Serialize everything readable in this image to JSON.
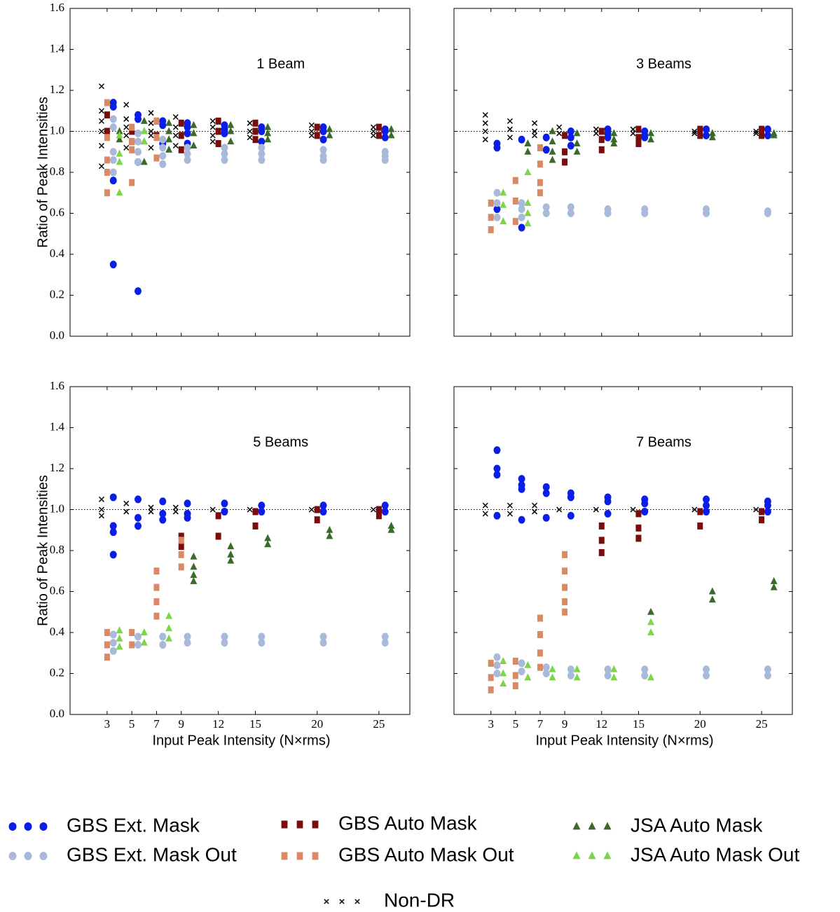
{
  "series": [
    {
      "name": "Non-DR",
      "color": "#000000",
      "marker": "x",
      "x": [
        2.55,
        4.55,
        6.55,
        8.55,
        11.55,
        14.55,
        19.55,
        24.55
      ]
    },
    {
      "name": "GBS Ext. Mask",
      "color": "#0a1ee8",
      "marker": "circle",
      "x": [
        3.5,
        5.5,
        7.5,
        9.5,
        12.5,
        15.5,
        20.5,
        25.5
      ]
    },
    {
      "name": "GBS Ext. Mask Out",
      "color": "#a9b9d9",
      "marker": "circle",
      "x": [
        3.5,
        5.5,
        7.5,
        9.5,
        12.5,
        15.5,
        20.5,
        25.5
      ]
    },
    {
      "name": "GBS Auto Mask",
      "color": "#7a0c0c",
      "marker": "square",
      "x": [
        3,
        5,
        7,
        9,
        12,
        15,
        20,
        25
      ]
    },
    {
      "name": "GBS Auto Mask Out",
      "color": "#d98a64",
      "marker": "square",
      "x": [
        3,
        5,
        7,
        9,
        12,
        15,
        20,
        25
      ]
    },
    {
      "name": "JSA Auto Mask",
      "color": "#3a6b2a",
      "marker": "triangle",
      "x": [
        4,
        6,
        8,
        10,
        13,
        16,
        21,
        26
      ]
    },
    {
      "name": "JSA Auto Mask Out",
      "color": "#7ed44a",
      "marker": "triangle",
      "x": [
        4,
        6,
        8,
        10,
        13,
        16,
        21,
        26
      ]
    }
  ],
  "chart_data": [
    {
      "type": "scatter",
      "title": "1 Beam",
      "ylabel": "Ratio of Peak Intensities",
      "xlim": [
        0,
        27.5
      ],
      "ylim": [
        0,
        1.6
      ],
      "hline": 1,
      "xticks": [
        3,
        5,
        7,
        9,
        12,
        15,
        20,
        25
      ],
      "yticks": [
        {
          "value": 0,
          "label": "0.0"
        },
        {
          "value": 0.2,
          "label": "0.2"
        },
        {
          "value": 0.4,
          "label": "0.4"
        },
        {
          "value": 0.6,
          "label": "0.6"
        },
        {
          "value": 0.8,
          "label": "0.8"
        },
        {
          "value": 1,
          "label": "1.0"
        },
        {
          "value": 1.2,
          "label": "1.2"
        },
        {
          "value": 1.4,
          "label": "1.4"
        },
        {
          "value": 1.6,
          "label": "1.6"
        }
      ],
      "values": [
        [
          [
            1.22,
            1.1,
            1.05,
            1.0,
            0.93,
            0.83
          ],
          [
            1.13,
            1.06,
            1.02,
            0.98,
            0.92
          ],
          [
            1.09,
            1.04,
            1.0,
            0.98,
            0.92
          ],
          [
            1.07,
            1.02,
            0.98,
            0.93
          ],
          [
            1.05,
            1.02,
            0.98,
            0.95
          ],
          [
            1.04,
            1.0,
            0.97
          ],
          [
            1.03,
            1.0,
            0.98
          ],
          [
            1.02,
            1.0,
            0.98
          ]
        ],
        [
          [
            1.14,
            1.12,
            0.76,
            0.35
          ],
          [
            1.08,
            1.06,
            0.85,
            0.22
          ],
          [
            1.05,
            1.03,
            0.94
          ],
          [
            1.04,
            1.02,
            0.99,
            0.94
          ],
          [
            1.03,
            1.01,
            0.99
          ],
          [
            1.02,
            1.0,
            0.95
          ],
          [
            1.02,
            1.0,
            0.96
          ],
          [
            1.01,
            1.0,
            0.97
          ]
        ],
        [
          [
            1.06,
            1.02,
            0.9,
            0.86,
            0.8
          ],
          [
            0.99,
            0.95,
            0.9,
            0.85
          ],
          [
            0.96,
            0.92,
            0.88,
            0.84
          ],
          [
            0.92,
            0.89,
            0.86
          ],
          [
            0.92,
            0.89,
            0.86
          ],
          [
            0.92,
            0.89,
            0.86
          ],
          [
            0.91,
            0.88,
            0.86
          ],
          [
            0.9,
            0.88,
            0.86
          ]
        ],
        [
          [
            1.08,
            1.0
          ],
          [
            1.0,
            0.95
          ],
          [
            1.05,
            0.98
          ],
          [
            1.04,
            0.98,
            0.91
          ],
          [
            1.05,
            1.0,
            0.94
          ],
          [
            1.04,
            1.0,
            0.96
          ],
          [
            1.02,
            0.98
          ],
          [
            1.02,
            0.98
          ]
        ],
        [
          [
            1.14,
            0.97,
            0.86,
            0.8,
            0.7
          ],
          [
            1.02,
            0.95,
            0.91,
            0.75
          ],
          [
            1.05,
            0.97,
            0.87
          ],
          [],
          [],
          [],
          [],
          []
        ],
        [
          [
            1.0,
            0.96
          ],
          [
            1.05,
            1.0,
            0.95,
            0.85
          ],
          [
            1.04,
            1.0,
            0.96,
            0.91
          ],
          [
            1.03,
            0.99,
            0.93
          ],
          [
            1.03,
            1.0,
            0.95
          ],
          [
            1.02,
            0.99,
            0.96
          ],
          [
            1.01,
            0.98
          ],
          [
            1.01,
            0.98
          ]
        ],
        [
          [
            0.98,
            0.89,
            0.85,
            0.7
          ],
          [
            1.0,
            0.95
          ],
          [],
          [],
          [],
          [],
          [],
          []
        ]
      ]
    },
    {
      "type": "scatter",
      "title": "3 Beams",
      "xlim": [
        0,
        27.5
      ],
      "ylim": [
        0,
        1.6
      ],
      "hline": 1,
      "xticks": [
        3,
        5,
        7,
        9,
        12,
        15,
        20,
        25
      ],
      "yticks": [
        0,
        0.2,
        0.4,
        0.6,
        0.8,
        1,
        1.2,
        1.4,
        1.6
      ],
      "values": [
        [
          [
            1.08,
            1.04,
            1.0,
            0.96
          ],
          [
            1.05,
            1.01,
            0.97
          ],
          [
            1.04,
            1.0,
            0.98
          ],
          [
            1.02,
            0.99
          ],
          [
            1.01,
            0.99
          ],
          [
            1.01,
            0.99
          ],
          [
            1.0,
            0.99
          ],
          [
            1.0,
            0.99
          ]
        ],
        [
          [
            0.94,
            0.92,
            0.62
          ],
          [
            0.96,
            0.53
          ],
          [
            0.97,
            0.91
          ],
          [
            1.0,
            0.97,
            0.93
          ],
          [
            1.01,
            0.99,
            0.97
          ],
          [
            1.0,
            0.98,
            0.97
          ],
          [
            1.01,
            0.98
          ],
          [
            1.01,
            0.98
          ]
        ],
        [
          [
            0.7,
            0.65,
            0.58
          ],
          [
            0.65,
            0.62,
            0.58
          ],
          [
            0.63,
            0.6
          ],
          [
            0.63,
            0.6
          ],
          [
            0.62,
            0.6
          ],
          [
            0.62,
            0.6
          ],
          [
            0.62,
            0.6
          ],
          [
            0.61,
            0.6
          ]
        ],
        [
          [],
          [],
          [],
          [
            0.98,
            0.9,
            0.85
          ],
          [
            1.0,
            0.96,
            0.91
          ],
          [
            1.01,
            0.97,
            0.94
          ],
          [
            1.01,
            0.98
          ],
          [
            1.01,
            0.98
          ]
        ],
        [
          [
            0.65,
            0.58,
            0.52
          ],
          [
            0.76,
            0.66,
            0.56
          ],
          [
            0.92,
            0.84,
            0.75,
            0.7
          ],
          [],
          [],
          [],
          [],
          []
        ],
        [
          [],
          [
            0.94,
            0.9
          ],
          [
            1.0,
            0.95,
            0.9,
            0.86
          ],
          [
            0.99,
            0.94,
            0.9
          ],
          [
            0.99,
            0.96,
            0.94
          ],
          [
            0.99,
            0.96
          ],
          [
            0.99,
            0.97
          ],
          [
            0.99,
            0.98
          ]
        ],
        [
          [
            0.7,
            0.64,
            0.56
          ],
          [
            0.8,
            0.65,
            0.6,
            0.55
          ],
          [],
          [],
          [],
          [],
          [],
          []
        ]
      ]
    },
    {
      "type": "scatter",
      "title": "5 Beams",
      "ylabel": "Ratio of Peak Intensities",
      "xlabel": "Input Peak Intensity (N×rms)",
      "xlim": [
        0,
        27.5
      ],
      "ylim": [
        0,
        1.6
      ],
      "hline": 1,
      "xticks": [
        3,
        5,
        7,
        9,
        12,
        15,
        20,
        25
      ],
      "yticks": [
        {
          "value": 0,
          "label": "0.0"
        },
        {
          "value": 0.2,
          "label": "0.2"
        },
        {
          "value": 0.4,
          "label": "0.4"
        },
        {
          "value": 0.6,
          "label": "0.6"
        },
        {
          "value": 0.8,
          "label": "0.8"
        },
        {
          "value": 1,
          "label": "1.0"
        },
        {
          "value": 1.2,
          "label": "1.2"
        },
        {
          "value": 1.4,
          "label": "1.4"
        },
        {
          "value": 1.6,
          "label": "1.6"
        }
      ],
      "values": [
        [
          [
            1.05,
            1.0,
            0.97
          ],
          [
            1.03,
            0.99
          ],
          [
            1.01,
            0.99
          ],
          [
            1.01,
            0.99
          ],
          [
            1.0
          ],
          [
            1.0
          ],
          [
            1.0
          ],
          [
            1.0
          ]
        ],
        [
          [
            1.06,
            0.92,
            0.89,
            0.78
          ],
          [
            1.05,
            0.96,
            0.92
          ],
          [
            1.04,
            0.98,
            0.95
          ],
          [
            1.03,
            0.98,
            0.96
          ],
          [
            1.03,
            0.99
          ],
          [
            1.02,
            0.99
          ],
          [
            1.02,
            0.99
          ],
          [
            1.02,
            0.99
          ]
        ],
        [
          [
            0.39,
            0.35,
            0.31
          ],
          [
            0.38,
            0.34
          ],
          [
            0.38,
            0.34
          ],
          [
            0.38,
            0.35
          ],
          [
            0.38,
            0.35
          ],
          [
            0.38,
            0.35
          ],
          [
            0.38,
            0.35
          ],
          [
            0.38,
            0.35
          ]
        ],
        [
          [],
          [],
          [],
          [
            0.87,
            0.82
          ],
          [
            0.97,
            0.87
          ],
          [
            0.99,
            0.92
          ],
          [
            1.0,
            0.95
          ],
          [
            1.0,
            0.97
          ]
        ],
        [
          [
            0.4,
            0.34,
            0.28
          ],
          [
            0.4,
            0.34
          ],
          [
            0.7,
            0.62,
            0.55,
            0.48
          ],
          [
            0.85,
            0.78,
            0.72
          ],
          [],
          [],
          [],
          []
        ],
        [
          [],
          [],
          [],
          [
            0.77,
            0.72,
            0.68,
            0.65
          ],
          [
            0.82,
            0.78,
            0.75
          ],
          [
            0.86,
            0.83
          ],
          [
            0.9,
            0.87
          ],
          [
            0.92,
            0.9
          ]
        ],
        [
          [
            0.41,
            0.37,
            0.33
          ],
          [
            0.4,
            0.35
          ],
          [
            0.48,
            0.42,
            0.37
          ],
          [],
          [],
          [],
          [],
          []
        ]
      ]
    },
    {
      "type": "scatter",
      "title": "7 Beams",
      "xlabel": "Input Peak Intensity (N×rms)",
      "xlim": [
        0,
        27.5
      ],
      "ylim": [
        0,
        1.6
      ],
      "hline": 1,
      "xticks": [
        3,
        5,
        7,
        9,
        12,
        15,
        20,
        25
      ],
      "yticks": [
        0,
        0.2,
        0.4,
        0.6,
        0.8,
        1,
        1.2,
        1.4,
        1.6
      ],
      "values": [
        [
          [
            1.02,
            0.98
          ],
          [
            1.02,
            0.98
          ],
          [
            1.02,
            0.99
          ],
          [
            1.0
          ],
          [
            1.0
          ],
          [
            1.0
          ],
          [
            1.0
          ],
          [
            1.0
          ]
        ],
        [
          [
            1.29,
            1.2,
            1.17,
            0.97
          ],
          [
            1.15,
            1.12,
            1.1,
            0.95
          ],
          [
            1.11,
            1.08,
            0.96
          ],
          [
            1.08,
            1.06,
            0.97
          ],
          [
            1.06,
            1.04,
            0.98
          ],
          [
            1.05,
            1.03,
            0.99
          ],
          [
            1.05,
            1.02,
            0.99
          ],
          [
            1.04,
            1.02,
            0.99
          ]
        ],
        [
          [
            0.28,
            0.24,
            0.2
          ],
          [
            0.25,
            0.21
          ],
          [
            0.23,
            0.2
          ],
          [
            0.22,
            0.19
          ],
          [
            0.22,
            0.19
          ],
          [
            0.22,
            0.19
          ],
          [
            0.22,
            0.19
          ],
          [
            0.22,
            0.19
          ]
        ],
        [
          [],
          [],
          [],
          [],
          [
            0.92,
            0.85,
            0.79
          ],
          [
            0.98,
            0.91,
            0.86
          ],
          [
            0.99,
            0.92
          ],
          [
            0.99,
            0.95
          ]
        ],
        [
          [
            0.25,
            0.18,
            0.12
          ],
          [
            0.26,
            0.19,
            0.14
          ],
          [
            0.47,
            0.39,
            0.3,
            0.23
          ],
          [
            0.78,
            0.7,
            0.62,
            0.55,
            0.5
          ],
          [],
          [],
          [],
          []
        ],
        [
          [],
          [],
          [],
          [],
          [],
          [
            0.5
          ],
          [
            0.6,
            0.56
          ],
          [
            0.65,
            0.62
          ]
        ],
        [
          [
            0.26,
            0.2,
            0.15
          ],
          [
            0.24,
            0.18
          ],
          [
            0.22,
            0.18
          ],
          [
            0.22,
            0.18
          ],
          [
            0.22,
            0.18
          ],
          [
            0.45,
            0.4,
            0.18
          ],
          [],
          []
        ]
      ]
    }
  ]
}
